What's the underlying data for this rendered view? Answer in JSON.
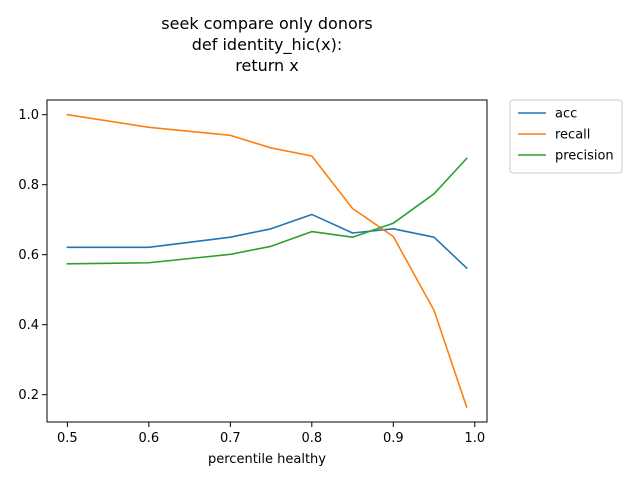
{
  "chart_data": {
    "type": "line",
    "title_lines": [
      "seek compare only donors",
      "def identity_hic(x):",
      "return x"
    ],
    "xlabel": "percentile healthy",
    "ylabel": "",
    "xlim": [
      0.475,
      1.015
    ],
    "ylim": [
      0.122,
      1.042
    ],
    "xticks": [
      "0.5",
      "0.6",
      "0.7",
      "0.8",
      "0.9",
      "1.0"
    ],
    "yticks": [
      "0.2",
      "0.4",
      "0.6",
      "0.8",
      "1.0"
    ],
    "grid": false,
    "legend_placement": "outside-upper-right",
    "x": [
      0.5,
      0.6,
      0.7,
      0.75,
      0.8,
      0.85,
      0.9,
      0.95,
      0.99
    ],
    "series": [
      {
        "name": "acc",
        "color": "#1f77b4",
        "values": [
          0.621,
          0.621,
          0.65,
          0.674,
          0.715,
          0.662,
          0.674,
          0.65,
          0.562
        ]
      },
      {
        "name": "recall",
        "color": "#ff7f0e",
        "values": [
          1.0,
          0.964,
          0.941,
          0.905,
          0.882,
          0.732,
          0.652,
          0.441,
          0.165
        ]
      },
      {
        "name": "precision",
        "color": "#2ca02c",
        "values": [
          0.574,
          0.577,
          0.601,
          0.624,
          0.666,
          0.65,
          0.69,
          0.774,
          0.875
        ]
      }
    ]
  }
}
